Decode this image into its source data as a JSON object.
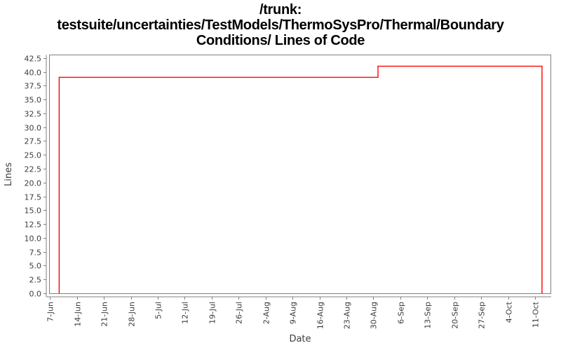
{
  "title": {
    "lines": [
      "/trunk:",
      "testsuite/uncertainties/TestModels/ThermoSysPro/Thermal/Boundary",
      "Conditions/ Lines of Code"
    ]
  },
  "colors": {
    "series_line": "#ff0000",
    "axis_and_border": "#808080",
    "tick_label": "#3c3c3c",
    "title_text": "#000000",
    "background": "#ffffff"
  },
  "chart_data": {
    "type": "line",
    "line_style": "step",
    "title": "/trunk: testsuite/uncertainties/TestModels/ThermoSysPro/Thermal/Boundary Conditions/ Lines of Code",
    "xlabel": "Date",
    "ylabel": "Lines",
    "x_tick_labels": [
      "7-Jun",
      "14-Jun",
      "21-Jun",
      "28-Jun",
      "5-Jul",
      "12-Jul",
      "19-Jul",
      "26-Jul",
      "2-Aug",
      "9-Aug",
      "16-Aug",
      "23-Aug",
      "30-Aug",
      "6-Sep",
      "13-Sep",
      "20-Sep",
      "27-Sep",
      "4-Oct",
      "11-Oct"
    ],
    "y_tick_values": [
      0,
      2.5,
      5,
      7.5,
      10,
      12.5,
      15,
      17.5,
      20,
      22.5,
      25,
      27.5,
      30,
      32.5,
      35,
      37.5,
      40,
      42.5
    ],
    "y_tick_labels": [
      "0.0",
      "2.5",
      "5.0",
      "7.5",
      "10.0",
      "12.5",
      "15.0",
      "17.5",
      "20.0",
      "22.5",
      "25.0",
      "27.5",
      "30.0",
      "32.5",
      "35.0",
      "37.5",
      "40.0",
      "42.5"
    ],
    "ylim": [
      0,
      43.1
    ],
    "xlim_weeks": [
      -0.01,
      18.6
    ],
    "grid": false,
    "legend": "none",
    "series": [
      {
        "name": "Lines of Code",
        "color": "#ff0000",
        "points_weeks_vs_lines": [
          [
            0.34,
            0
          ],
          [
            0.34,
            39
          ],
          [
            12.17,
            39
          ],
          [
            12.17,
            41
          ],
          [
            18.26,
            41
          ],
          [
            18.26,
            0
          ]
        ]
      }
    ],
    "segments": [
      {
        "from": "just after 7-Jun",
        "to": "just after 30-Aug",
        "lines": 39
      },
      {
        "from": "just after 30-Aug",
        "to": "just after 11-Oct (series end)",
        "lines": 41
      }
    ]
  }
}
